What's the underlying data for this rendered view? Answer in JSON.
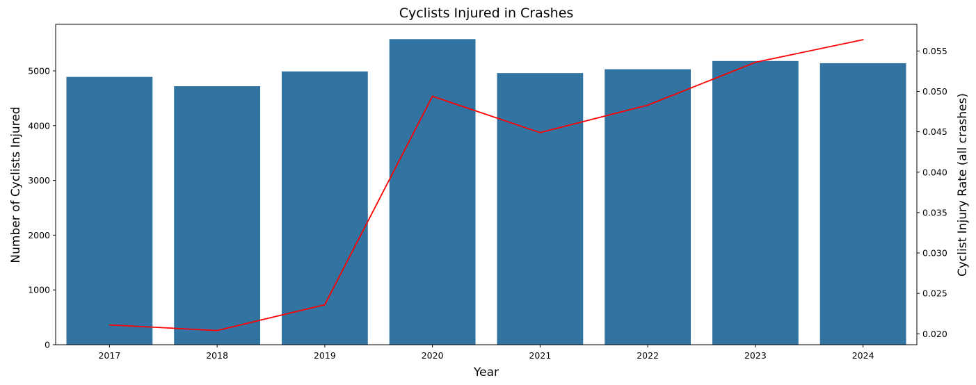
{
  "chart_data": {
    "type": "bar",
    "title": "Cyclists Injured in Crashes",
    "xlabel": "Year",
    "ylabel": "Number of Cyclists Injured",
    "y2label": "Cyclist Injury Rate (all crashes)",
    "categories": [
      "2017",
      "2018",
      "2019",
      "2020",
      "2021",
      "2022",
      "2023",
      "2024"
    ],
    "series": [
      {
        "type": "bar",
        "axis": "left",
        "color": "#3274a1",
        "values": [
          4890,
          4720,
          4990,
          5580,
          4960,
          5030,
          5180,
          5140
        ]
      },
      {
        "type": "line",
        "axis": "right",
        "color": "#ff0000",
        "values": [
          0.0211,
          0.0204,
          0.0236,
          0.0494,
          0.0449,
          0.0483,
          0.0536,
          0.0564
        ]
      }
    ],
    "ylim": [
      0,
      5850
    ],
    "yticks": [
      0,
      1000,
      2000,
      3000,
      4000,
      5000
    ],
    "y2lim": [
      0.01865,
      0.0583
    ],
    "y2ticks": [
      "0.020",
      "0.025",
      "0.030",
      "0.035",
      "0.040",
      "0.045",
      "0.050",
      "0.055"
    ],
    "grid": false,
    "legend": "none"
  }
}
